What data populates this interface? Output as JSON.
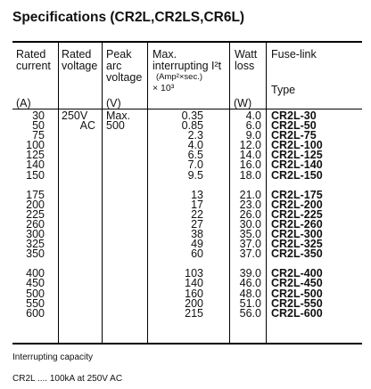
{
  "title": "Specifications (CR2L,CR2LS,CR6L)",
  "headers": {
    "rated_current": [
      "Rated",
      "current"
    ],
    "rated_voltage": [
      "Rated",
      "voltage"
    ],
    "peak_arc_voltage": [
      "Peak",
      "arc",
      "voltage"
    ],
    "max_interrupting": [
      "Max.",
      "interrupting I²t"
    ],
    "max_interrupting_unit": "(Amp²×sec.)",
    "max_interrupting_mult": "× 10³",
    "watt_loss": [
      "Watt",
      "loss"
    ],
    "fuse_link": "Fuse-link",
    "type": "Type"
  },
  "units": {
    "current": "(A)",
    "voltage": "(V)",
    "watt": "(W)"
  },
  "voltage": {
    "line1": "250V",
    "line2": "AC"
  },
  "peak": {
    "line1": "Max.",
    "line2": "500"
  },
  "groups": [
    {
      "rows": [
        {
          "current": "30",
          "i2t": "0.35",
          "watt": "4.0",
          "type": "CR2L-30"
        },
        {
          "current": "50",
          "i2t": "0.85",
          "watt": "6.0",
          "type": "CR2L-50"
        },
        {
          "current": "75",
          "i2t": "2.3",
          "watt": "9.0",
          "type": "CR2L-75"
        },
        {
          "current": "100",
          "i2t": "4.0",
          "watt": "12.0",
          "type": "CR2L-100"
        },
        {
          "current": "125",
          "i2t": "6.5",
          "watt": "14.0",
          "type": "CR2L-125"
        },
        {
          "current": "140",
          "i2t": "7.0",
          "watt": "16.0",
          "type": "CR2L-140"
        },
        {
          "current": "150",
          "i2t": "9.5",
          "watt": "18.0",
          "type": "CR2L-150"
        }
      ]
    },
    {
      "rows": [
        {
          "current": "175",
          "i2t": "13",
          "watt": "21.0",
          "type": "CR2L-175"
        },
        {
          "current": "200",
          "i2t": "17",
          "watt": "23.0",
          "type": "CR2L-200"
        },
        {
          "current": "225",
          "i2t": "22",
          "watt": "26.0",
          "type": "CR2L-225"
        },
        {
          "current": "260",
          "i2t": "27",
          "watt": "30.0",
          "type": "CR2L-260"
        },
        {
          "current": "300",
          "i2t": "38",
          "watt": "35.0",
          "type": "CR2L-300"
        },
        {
          "current": "325",
          "i2t": "49",
          "watt": "37.0",
          "type": "CR2L-325"
        },
        {
          "current": "350",
          "i2t": "60",
          "watt": "37.0",
          "type": "CR2L-350"
        }
      ]
    },
    {
      "rows": [
        {
          "current": "400",
          "i2t": "103",
          "watt": "39.0",
          "type": "CR2L-400"
        },
        {
          "current": "450",
          "i2t": "140",
          "watt": "46.0",
          "type": "CR2L-450"
        },
        {
          "current": "500",
          "i2t": "160",
          "watt": "48.0",
          "type": "CR2L-500"
        },
        {
          "current": "550",
          "i2t": "200",
          "watt": "51.0",
          "type": "CR2L-550"
        },
        {
          "current": "600",
          "i2t": "215",
          "watt": "56.0",
          "type": "CR2L-600"
        }
      ]
    }
  ],
  "notes": {
    "line1": "Interrupting capacity",
    "line2": "CR2L .... 100kA at 250V AC"
  }
}
